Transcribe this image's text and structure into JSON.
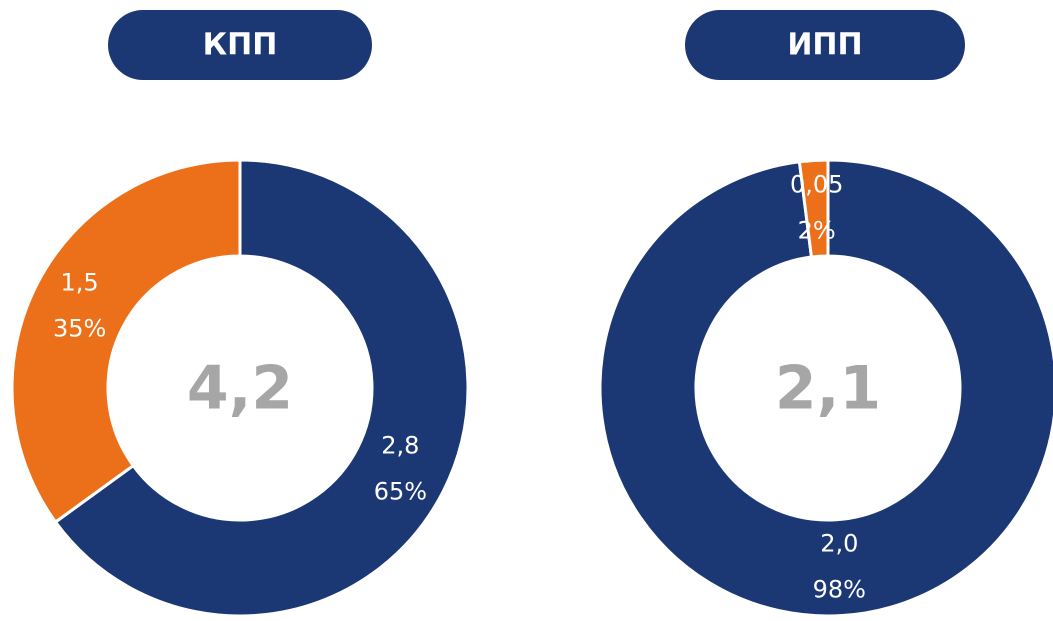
{
  "chart_data": [
    {
      "type": "donut",
      "title": "КПП",
      "total": "4,2",
      "values": [
        65,
        35
      ],
      "value_labels": [
        "65%",
        "35%"
      ],
      "amounts": [
        "2,8",
        "1,5"
      ],
      "colors": [
        "#1b3874",
        "#ec6f1a"
      ]
    },
    {
      "type": "donut",
      "title": "ИПП",
      "total": "2,1",
      "values": [
        98,
        2
      ],
      "value_labels": [
        "98%",
        "2%"
      ],
      "amounts": [
        "2,0",
        "0,05"
      ],
      "colors": [
        "#1b3874",
        "#ec6f1a"
      ]
    }
  ]
}
